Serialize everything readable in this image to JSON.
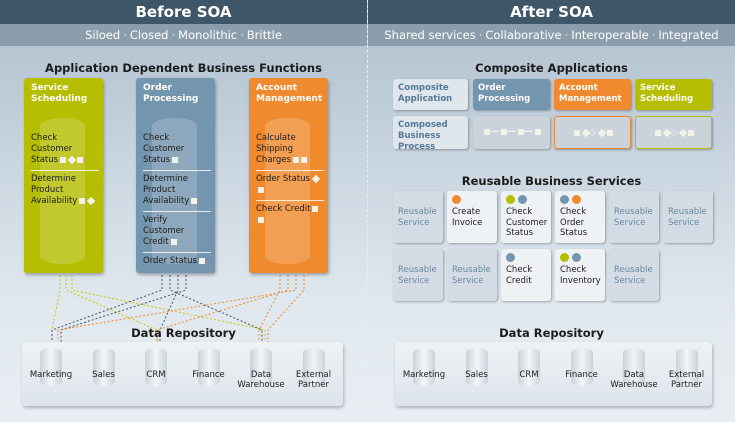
{
  "before": {
    "title": "Before SOA",
    "tags": [
      "Siloed",
      "Closed",
      "Monolithic",
      "Brittle"
    ],
    "section_title": "Application Dependent Business Functions",
    "columns": [
      {
        "name": "Service Scheduling",
        "color": "#b5be00",
        "items": [
          "Check Customer Status",
          "Determine Product Availability"
        ]
      },
      {
        "name": "Order Processing",
        "color": "#7495ae",
        "items": [
          "Check Customer Status",
          "Determine Product Availability",
          "Verify Customer Credit",
          "Order Status"
        ]
      },
      {
        "name": "Account Management",
        "color": "#ef8a2e",
        "items": [
          "Calculate Shipping Charges",
          "Order Status",
          "Check Credit"
        ]
      }
    ],
    "repository_title": "Data Repository",
    "repositories": [
      "Marketing",
      "Sales",
      "CRM",
      "Finance",
      "Data Warehouse",
      "External Partner"
    ]
  },
  "after": {
    "title": "After SOA",
    "tags": [
      "Shared services",
      "Collaborative",
      "Interoperable",
      "Integrated"
    ],
    "composite_title": "Composite Applications",
    "row_labels": [
      "Composite Application",
      "Composed Business Process"
    ],
    "apps": [
      {
        "name": "Order Processing",
        "color": "#7495ae"
      },
      {
        "name": "Account Management",
        "color": "#ef8a2e"
      },
      {
        "name": "Service Scheduling",
        "color": "#b5be00"
      }
    ],
    "services_title": "Reusable Business Services",
    "services": [
      {
        "label": "Reusable Service",
        "dots": []
      },
      {
        "label": "Create Invoice",
        "dots": [
          "#ef8a2e"
        ]
      },
      {
        "label": "Check Customer Status",
        "dots": [
          "#b5be00",
          "#7495ae"
        ]
      },
      {
        "label": "Check Order Status",
        "dots": [
          "#7495ae",
          "#ef8a2e"
        ]
      },
      {
        "label": "Reusable Service",
        "dots": []
      },
      {
        "label": "Reusable Service",
        "dots": []
      },
      {
        "label": "Reusable Service",
        "dots": []
      },
      {
        "label": "Reusable Service",
        "dots": []
      },
      {
        "label": "Check Credit",
        "dots": [
          "#7495ae"
        ]
      },
      {
        "label": "Check Inventory",
        "dots": [
          "#b5be00",
          "#7495ae"
        ]
      },
      {
        "label": "Reusable Service",
        "dots": []
      }
    ],
    "repository_title": "Data Repository",
    "repositories": [
      "Marketing",
      "Sales",
      "CRM",
      "Finance",
      "Data Warehouse",
      "External Partner"
    ]
  }
}
